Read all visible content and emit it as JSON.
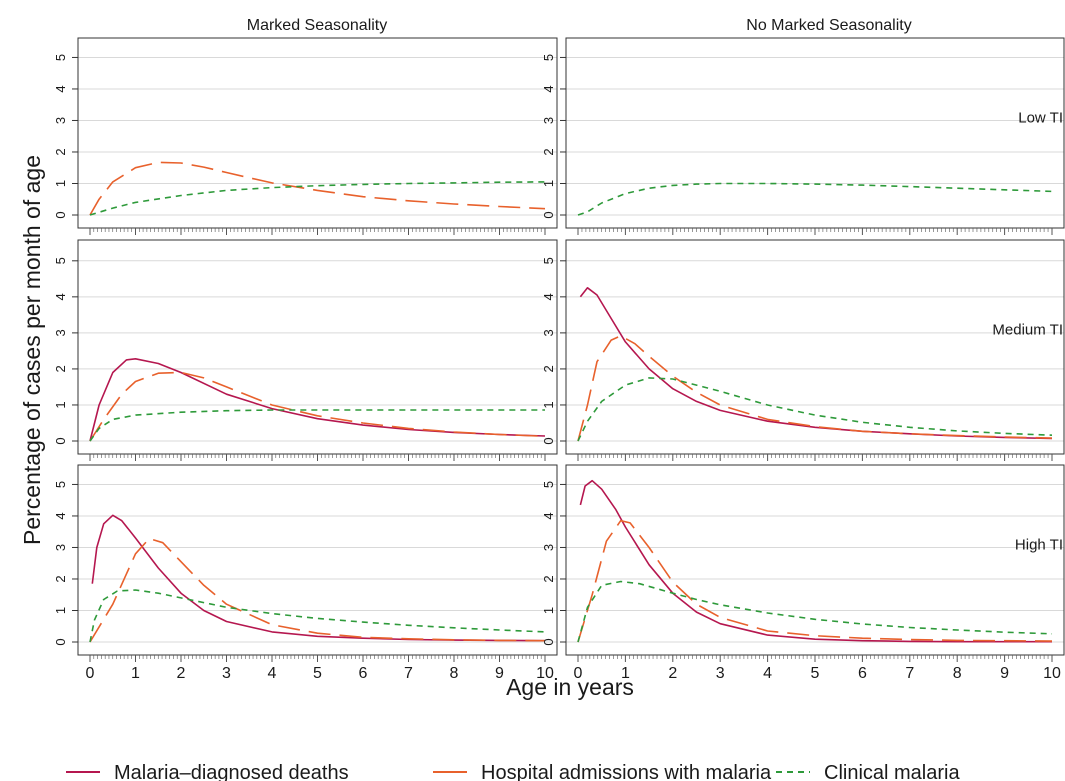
{
  "chart_data": {
    "type": "line",
    "layout": "faceted 3 rows x 2 columns",
    "ylabel": "Percentage of cases per month of age",
    "xlabel": "Age in years",
    "x_ticks": [
      0,
      1,
      2,
      3,
      4,
      5,
      6,
      7,
      8,
      9,
      10
    ],
    "y_ticks": [
      0,
      1,
      2,
      3,
      4,
      5
    ],
    "xlim": [
      0,
      10
    ],
    "ylim": [
      0,
      5.3
    ],
    "grid": true,
    "columns": [
      "Marked Seasonality",
      "No Marked Seasonality"
    ],
    "rows": [
      "Low TI",
      "Medium TI",
      "High TI"
    ],
    "series_legend": [
      {
        "key": "deaths",
        "name": "Malaria–diagnosed deaths",
        "color": "#b5174f",
        "dash": "solid"
      },
      {
        "key": "admissions",
        "name": "Hospital admissions with malaria",
        "color": "#e8612c",
        "dash": "long-dash"
      },
      {
        "key": "clinical",
        "name": "Clinical malaria",
        "color": "#2e9a3a",
        "dash": "short-dash"
      }
    ],
    "panels": [
      {
        "row": "Low TI",
        "column": "Marked Seasonality",
        "show_row_label": false,
        "series": {
          "admissions": {
            "x": [
              0,
              0.2,
              0.5,
              1,
              1.5,
              2,
              2.5,
              3,
              3.5,
              4,
              5,
              6,
              7,
              8,
              9,
              10
            ],
            "y": [
              0,
              0.5,
              1.05,
              1.5,
              1.67,
              1.65,
              1.52,
              1.35,
              1.18,
              1.02,
              0.78,
              0.58,
              0.45,
              0.35,
              0.27,
              0.2
            ]
          },
          "clinical": {
            "x": [
              0,
              0.5,
              1,
              2,
              3,
              4,
              5,
              6,
              7,
              8,
              9,
              10
            ],
            "y": [
              0,
              0.22,
              0.4,
              0.62,
              0.78,
              0.87,
              0.93,
              0.97,
              1.0,
              1.02,
              1.04,
              1.05
            ]
          }
        }
      },
      {
        "row": "Low TI",
        "column": "No Marked Seasonality",
        "show_row_label": true,
        "series": {
          "clinical": {
            "x": [
              0,
              0.2,
              0.5,
              1,
              1.5,
              2,
              2.5,
              3,
              3.5,
              4,
              5,
              6,
              7,
              8,
              9,
              10
            ],
            "y": [
              0,
              0.1,
              0.38,
              0.68,
              0.85,
              0.94,
              0.98,
              1.0,
              1.0,
              1.0,
              0.98,
              0.95,
              0.9,
              0.85,
              0.8,
              0.75
            ]
          }
        }
      },
      {
        "row": "Medium TI",
        "column": "Marked Seasonality",
        "show_row_label": false,
        "series": {
          "deaths": {
            "x": [
              0,
              0.2,
              0.5,
              0.8,
              1,
              1.5,
              2,
              3,
              4,
              5,
              6,
              7,
              8,
              9,
              10
            ],
            "y": [
              0,
              1.0,
              1.9,
              2.25,
              2.28,
              2.15,
              1.9,
              1.3,
              0.9,
              0.62,
              0.44,
              0.32,
              0.24,
              0.18,
              0.14
            ]
          },
          "admissions": {
            "x": [
              0,
              0.3,
              0.7,
              1,
              1.5,
              2,
              2.5,
              3,
              4,
              5,
              6,
              7,
              8,
              9,
              10
            ],
            "y": [
              0,
              0.6,
              1.3,
              1.65,
              1.88,
              1.9,
              1.75,
              1.5,
              1.0,
              0.7,
              0.5,
              0.35,
              0.25,
              0.18,
              0.13
            ]
          },
          "clinical": {
            "x": [
              0,
              0.2,
              0.5,
              1,
              2,
              3,
              4,
              5,
              6,
              7,
              8,
              9,
              10
            ],
            "y": [
              0,
              0.35,
              0.6,
              0.72,
              0.8,
              0.84,
              0.86,
              0.86,
              0.86,
              0.86,
              0.86,
              0.86,
              0.86
            ]
          }
        }
      },
      {
        "row": "Medium TI",
        "column": "No Marked Seasonality",
        "show_row_label": true,
        "series": {
          "deaths": {
            "x": [
              0.05,
              0.2,
              0.4,
              0.7,
              1,
              1.5,
              2,
              2.5,
              3,
              4,
              5,
              6,
              7,
              8,
              9,
              10
            ],
            "y": [
              4.0,
              4.25,
              4.05,
              3.4,
              2.75,
              2.0,
              1.45,
              1.1,
              0.85,
              0.55,
              0.38,
              0.27,
              0.2,
              0.14,
              0.1,
              0.07
            ]
          },
          "admissions": {
            "x": [
              0,
              0.2,
              0.4,
              0.7,
              0.9,
              1.2,
              1.5,
              2,
              2.5,
              3,
              4,
              5,
              6,
              7,
              8,
              9,
              10
            ],
            "y": [
              0,
              1.0,
              2.2,
              2.8,
              2.92,
              2.7,
              2.35,
              1.8,
              1.35,
              1.0,
              0.6,
              0.4,
              0.27,
              0.2,
              0.15,
              0.11,
              0.08
            ]
          },
          "clinical": {
            "x": [
              0,
              0.2,
              0.5,
              1,
              1.5,
              2,
              2.5,
              3,
              4,
              5,
              6,
              7,
              8,
              9,
              10
            ],
            "y": [
              0,
              0.55,
              1.1,
              1.55,
              1.75,
              1.72,
              1.55,
              1.38,
              1.0,
              0.72,
              0.52,
              0.38,
              0.28,
              0.21,
              0.16
            ]
          }
        }
      },
      {
        "row": "High TI",
        "column": "Marked Seasonality",
        "show_row_label": false,
        "series": {
          "deaths": {
            "x": [
              0.05,
              0.15,
              0.3,
              0.5,
              0.7,
              1,
              1.5,
              2,
              2.5,
              3,
              4,
              5,
              6,
              7,
              8,
              9,
              10
            ],
            "y": [
              1.85,
              3.0,
              3.75,
              4.02,
              3.85,
              3.3,
              2.35,
              1.55,
              1.0,
              0.65,
              0.32,
              0.18,
              0.12,
              0.08,
              0.06,
              0.05,
              0.04
            ]
          },
          "admissions": {
            "x": [
              0,
              0.5,
              1,
              1.3,
              1.6,
              2,
              2.5,
              3,
              4,
              5,
              6,
              7,
              8,
              9,
              10
            ],
            "y": [
              0,
              1.2,
              2.8,
              3.28,
              3.15,
              2.55,
              1.8,
              1.2,
              0.55,
              0.28,
              0.15,
              0.1,
              0.07,
              0.05,
              0.04
            ]
          },
          "clinical": {
            "x": [
              0,
              0.1,
              0.3,
              0.6,
              1,
              1.5,
              2,
              2.5,
              3,
              4,
              5,
              6,
              7,
              8,
              9,
              10
            ],
            "y": [
              0,
              0.7,
              1.35,
              1.62,
              1.65,
              1.55,
              1.4,
              1.25,
              1.1,
              0.9,
              0.75,
              0.63,
              0.53,
              0.45,
              0.38,
              0.32
            ]
          }
        }
      },
      {
        "row": "High TI",
        "column": "No Marked Seasonality",
        "show_row_label": true,
        "series": {
          "deaths": {
            "x": [
              0.05,
              0.15,
              0.3,
              0.5,
              0.8,
              1,
              1.5,
              2,
              2.5,
              3,
              4,
              5,
              6,
              7,
              8,
              9,
              10
            ],
            "y": [
              4.35,
              4.95,
              5.12,
              4.85,
              4.2,
              3.65,
              2.45,
              1.55,
              0.95,
              0.58,
              0.22,
              0.09,
              0.04,
              0.02,
              0.01,
              0.01,
              0.01
            ]
          },
          "admissions": {
            "x": [
              0,
              0.3,
              0.6,
              0.9,
              1.1,
              1.5,
              2,
              2.5,
              3,
              4,
              5,
              6,
              7,
              8,
              9,
              10
            ],
            "y": [
              0,
              1.5,
              3.2,
              3.85,
              3.78,
              3.0,
              1.9,
              1.2,
              0.78,
              0.35,
              0.2,
              0.12,
              0.08,
              0.05,
              0.04,
              0.03
            ]
          },
          "clinical": {
            "x": [
              0,
              0.2,
              0.5,
              0.9,
              1.3,
              2,
              2.5,
              3,
              4,
              5,
              6,
              7,
              8,
              9,
              10
            ],
            "y": [
              0,
              1.1,
              1.8,
              1.92,
              1.85,
              1.55,
              1.35,
              1.18,
              0.92,
              0.72,
              0.57,
              0.46,
              0.38,
              0.31,
              0.26
            ]
          }
        }
      }
    ]
  }
}
